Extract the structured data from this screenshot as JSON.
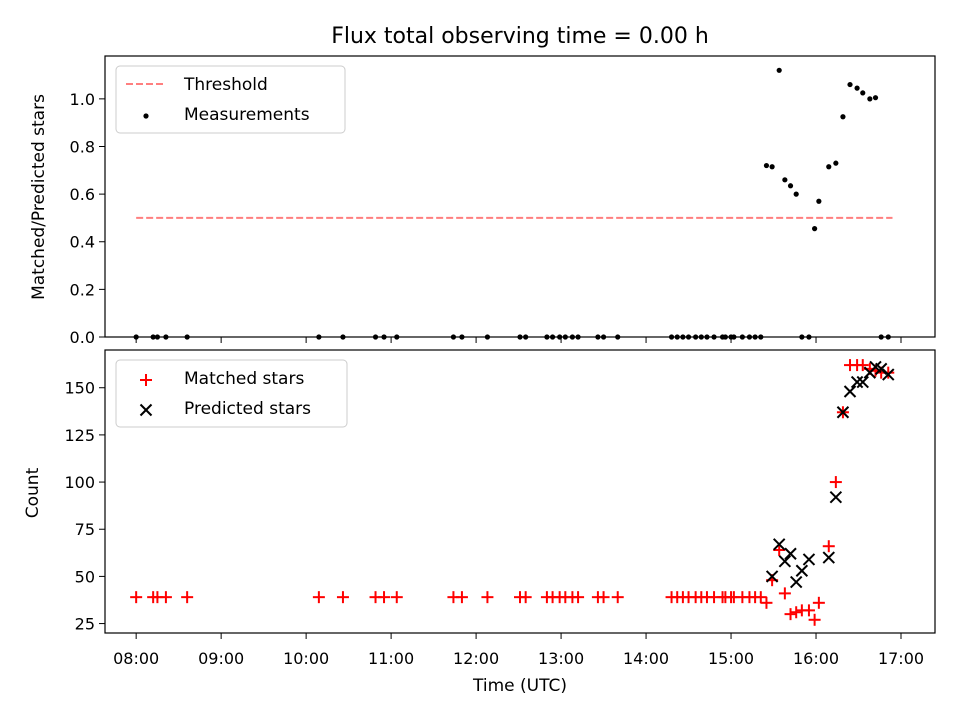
{
  "figure": {
    "title": "Flux total observing time = 0.00 h",
    "xlabel": "Time (UTC)"
  },
  "colors": {
    "threshold": "#ff7f7f",
    "measurements": "#000000",
    "matched": "#ff0000",
    "predicted": "#000000"
  },
  "chart_data": [
    {
      "type": "scatter",
      "ylabel": "Matched/Predicted stars",
      "xlim": [
        "07:38",
        "17:24"
      ],
      "ylim": [
        0,
        1.18
      ],
      "yticks": [
        "0.0",
        "0.2",
        "0.4",
        "0.6",
        "0.8",
        "1.0"
      ],
      "legend": {
        "placement": "top-left",
        "entries": [
          "Threshold",
          "Measurements"
        ]
      },
      "threshold": {
        "name": "Threshold",
        "x": [
          "08:00",
          "16:54"
        ],
        "y": 0.5,
        "style": "dashed"
      },
      "series": [
        {
          "name": "Measurements",
          "x": [
            "08:00",
            "08:12",
            "08:15",
            "08:21",
            "08:36",
            "10:09",
            "10:26",
            "10:49",
            "10:55",
            "11:04",
            "11:44",
            "11:50",
            "12:08",
            "12:31",
            "12:35",
            "12:50",
            "12:54",
            "12:59",
            "13:03",
            "13:08",
            "13:12",
            "13:26",
            "13:30",
            "13:40",
            "14:18",
            "14:22",
            "14:26",
            "14:30",
            "14:35",
            "14:39",
            "14:43",
            "14:48",
            "14:54",
            "14:56",
            "15:00",
            "15:02",
            "15:08",
            "15:13",
            "15:17",
            "15:21",
            "15:25",
            "15:29",
            "15:34",
            "15:38",
            "15:42",
            "15:46",
            "15:50",
            "15:55",
            "15:59",
            "16:02",
            "16:09",
            "16:14",
            "16:19",
            "16:24",
            "16:29",
            "16:33",
            "16:38",
            "16:42",
            "16:46",
            "16:51"
          ],
          "y": [
            0,
            0,
            0,
            0,
            0,
            0,
            0,
            0,
            0,
            0,
            0,
            0,
            0,
            0,
            0,
            0,
            0,
            0,
            0,
            0,
            0,
            0,
            0,
            0,
            0,
            0,
            0,
            0,
            0,
            0,
            0,
            0,
            0,
            0,
            0,
            0,
            0,
            0,
            0,
            0,
            0.72,
            0.715,
            1.12,
            0.66,
            0.635,
            0.6,
            0,
            0,
            0.455,
            0.57,
            0.715,
            0.73,
            0.925,
            1.06,
            1.045,
            1.025,
            1.0,
            1.005,
            0,
            0
          ]
        }
      ]
    },
    {
      "type": "scatter",
      "ylabel": "Count",
      "xlim": [
        "07:38",
        "17:24"
      ],
      "ylim": [
        20,
        170
      ],
      "yticks": [
        "25",
        "50",
        "75",
        "100",
        "125",
        "150"
      ],
      "xticks": [
        "08:00",
        "09:00",
        "10:00",
        "11:00",
        "12:00",
        "13:00",
        "14:00",
        "15:00",
        "16:00",
        "17:00"
      ],
      "legend": {
        "placement": "top-left",
        "entries": [
          "Matched stars",
          "Predicted stars"
        ]
      },
      "series": [
        {
          "name": "Matched stars",
          "marker": "plus",
          "x": [
            "08:00",
            "08:12",
            "08:15",
            "08:21",
            "08:36",
            "10:09",
            "10:26",
            "10:49",
            "10:55",
            "11:04",
            "11:44",
            "11:50",
            "12:08",
            "12:31",
            "12:35",
            "12:50",
            "12:54",
            "12:59",
            "13:03",
            "13:08",
            "13:12",
            "13:26",
            "13:30",
            "13:40",
            "14:18",
            "14:22",
            "14:26",
            "14:30",
            "14:35",
            "14:39",
            "14:43",
            "14:48",
            "14:54",
            "14:56",
            "15:00",
            "15:02",
            "15:08",
            "15:13",
            "15:17",
            "15:21",
            "15:25",
            "15:29",
            "15:34",
            "15:38",
            "15:42",
            "15:46",
            "15:50",
            "15:55",
            "15:59",
            "16:02",
            "16:09",
            "16:14",
            "16:19",
            "16:24",
            "16:29",
            "16:33",
            "16:38",
            "16:42",
            "16:46",
            "16:51"
          ],
          "y": [
            39,
            39,
            39,
            39,
            39,
            39,
            39,
            39,
            39,
            39,
            39,
            39,
            39,
            39,
            39,
            39,
            39,
            39,
            39,
            39,
            39,
            39,
            39,
            39,
            39,
            39,
            39,
            39,
            39,
            39,
            39,
            39,
            39,
            39,
            39,
            39,
            39,
            39,
            39,
            39,
            36,
            48,
            64,
            41,
            30,
            31,
            32,
            32,
            27,
            36,
            66,
            100,
            137,
            162,
            162,
            162,
            160,
            159,
            158,
            158
          ]
        },
        {
          "name": "Predicted stars",
          "marker": "x",
          "x": [
            "15:29",
            "15:34",
            "15:38",
            "15:42",
            "15:46",
            "15:50",
            "15:55",
            "16:09",
            "16:14",
            "16:19",
            "16:24",
            "16:29",
            "16:33",
            "16:38",
            "16:42",
            "16:46",
            "16:51"
          ],
          "y": [
            50,
            67,
            58,
            62,
            47,
            53,
            59,
            60,
            92,
            137,
            148,
            153,
            153,
            158,
            161,
            160,
            157
          ]
        }
      ]
    }
  ]
}
